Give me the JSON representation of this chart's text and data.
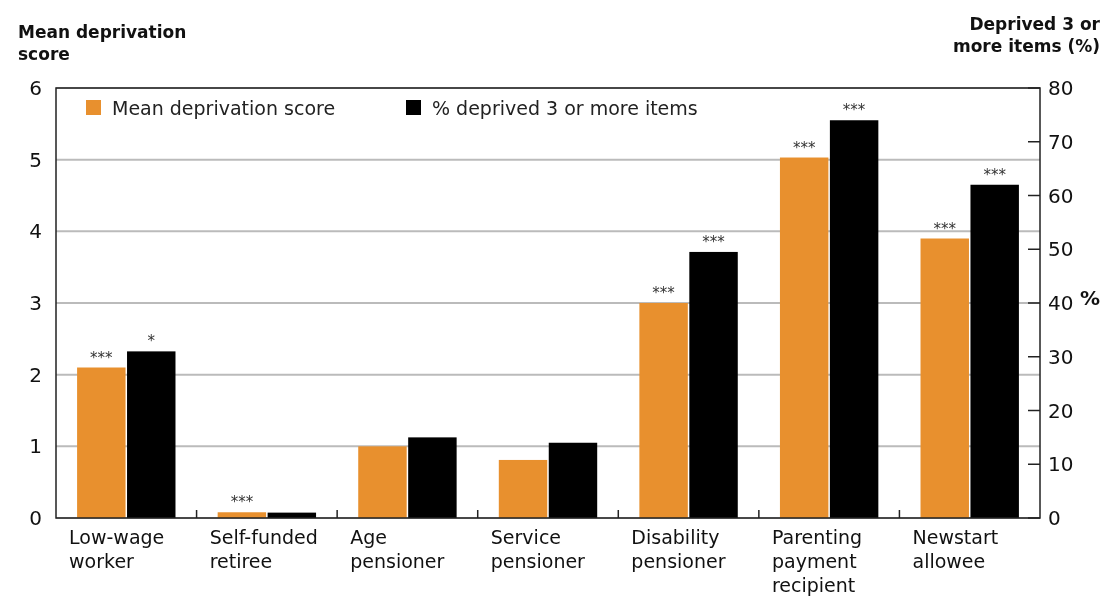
{
  "chart_data": {
    "type": "bar",
    "ylabel": "Mean deprivation score",
    "y2label": "Deprived 3 or more items (%)",
    "annotations": [
      "%"
    ],
    "categories": [
      "Low-wage worker",
      "Self-funded retiree",
      "Age pensioner",
      "Service pensioner",
      "Disability pensioner",
      "Parenting payment recipient",
      "Newstart allowee"
    ],
    "series": [
      {
        "name": "Mean deprivation score",
        "color": "#e8902e",
        "values": [
          2.1,
          0.08,
          1.0,
          0.81,
          3.0,
          5.03,
          3.9
        ],
        "value_labels": [
          "***",
          "***",
          null,
          null,
          "***",
          "***",
          "***"
        ]
      },
      {
        "name": "% deprived 3 or more items",
        "color": "#000000",
        "axis": "y2",
        "values": [
          31,
          1,
          15,
          14,
          49.5,
          74,
          62
        ],
        "value_labels": [
          "*",
          null,
          null,
          null,
          "***",
          "***",
          "***"
        ]
      }
    ],
    "ylim": [
      0,
      6
    ],
    "yticks": [
      0,
      1,
      2,
      3,
      4,
      5,
      6
    ],
    "y2lim": [
      0,
      80
    ],
    "y2ticks": [
      0,
      10,
      20,
      30,
      40,
      50,
      60,
      70,
      80
    ],
    "grid": "y",
    "legend": "top left"
  }
}
